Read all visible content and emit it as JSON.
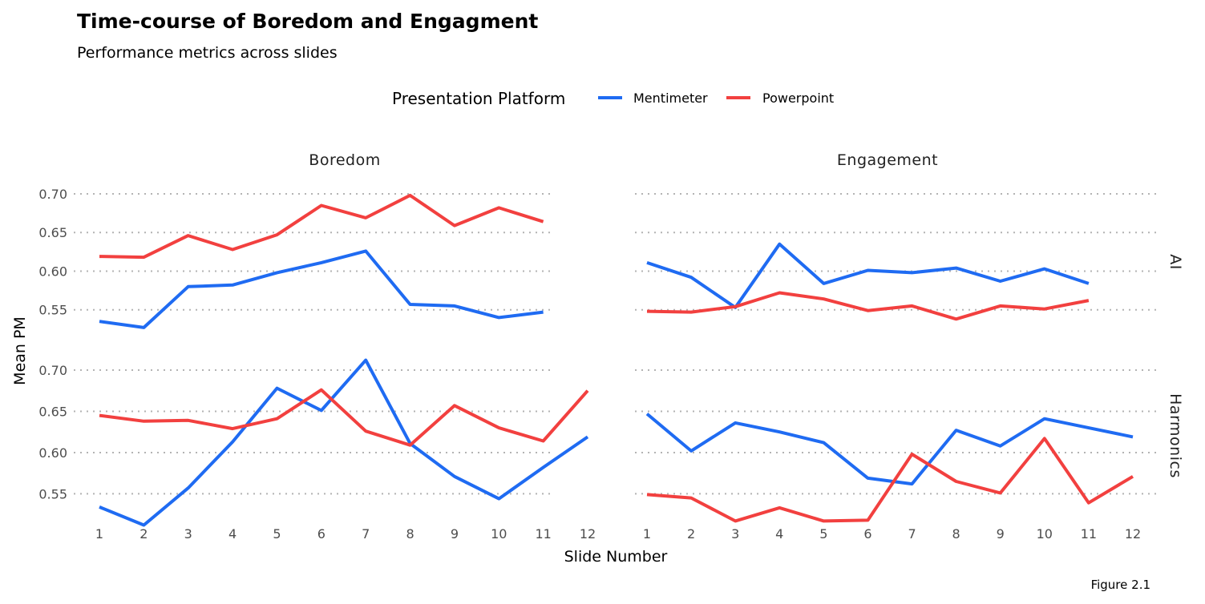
{
  "chart_data": {
    "type": "line",
    "title": "Time-course of Boredom and Engagment",
    "subtitle": "Performance metrics across slides",
    "caption": "Figure 2.1",
    "xlabel": "Slide Number",
    "ylabel": "Mean PM",
    "legend": {
      "title": "Presentation Platform",
      "position": "top",
      "entries": [
        {
          "name": "Mentimeter",
          "color": "#1f6bf2"
        },
        {
          "name": "Powerpoint",
          "color": "#f2403f"
        }
      ]
    },
    "facet_columns": [
      "Boredom",
      "Engagement"
    ],
    "facet_rows": [
      "AI",
      "Harmonics"
    ],
    "x_ticks": [
      "1",
      "2",
      "3",
      "4",
      "5",
      "6",
      "7",
      "8",
      "9",
      "10",
      "11",
      "12"
    ],
    "y_ticks": [
      "0.55",
      "0.60",
      "0.65",
      "0.70"
    ],
    "ylim_rows": {
      "AI": [
        0.515,
        0.712
      ],
      "Harmonics": [
        0.505,
        0.722
      ]
    },
    "panels": [
      {
        "column": "Boredom",
        "row": "AI",
        "series": [
          {
            "name": "Mentimeter",
            "x": [
              1,
              2,
              3,
              4,
              5,
              6,
              7,
              8,
              9,
              10,
              11
            ],
            "values": [
              0.535,
              0.527,
              0.58,
              0.582,
              0.598,
              0.611,
              0.626,
              0.557,
              0.555,
              0.54,
              0.547
            ]
          },
          {
            "name": "Powerpoint",
            "x": [
              1,
              2,
              3,
              4,
              5,
              6,
              7,
              8,
              9,
              10,
              11
            ],
            "values": [
              0.619,
              0.618,
              0.646,
              0.628,
              0.647,
              0.685,
              0.669,
              0.698,
              0.659,
              0.682,
              0.664
            ]
          }
        ]
      },
      {
        "column": "Engagement",
        "row": "AI",
        "series": [
          {
            "name": "Mentimeter",
            "x": [
              1,
              2,
              3,
              4,
              5,
              6,
              7,
              8,
              9,
              10,
              11
            ],
            "values": [
              0.611,
              0.592,
              0.553,
              0.635,
              0.584,
              0.601,
              0.598,
              0.604,
              0.587,
              0.603,
              0.584
            ]
          },
          {
            "name": "Powerpoint",
            "x": [
              1,
              2,
              3,
              4,
              5,
              6,
              7,
              8,
              9,
              10,
              11
            ],
            "values": [
              0.548,
              0.547,
              0.554,
              0.572,
              0.564,
              0.549,
              0.555,
              0.538,
              0.555,
              0.551,
              0.562
            ]
          }
        ]
      },
      {
        "column": "Boredom",
        "row": "Harmonics",
        "series": [
          {
            "name": "Mentimeter",
            "x": [
              1,
              2,
              3,
              4,
              5,
              6,
              7,
              8,
              9,
              10,
              11,
              12
            ],
            "values": [
              0.534,
              0.512,
              0.557,
              0.613,
              0.678,
              0.651,
              0.712,
              0.611,
              0.571,
              0.544,
              0.582,
              0.619
            ]
          },
          {
            "name": "Powerpoint",
            "x": [
              1,
              2,
              3,
              4,
              5,
              6,
              7,
              8,
              9,
              10,
              11,
              12
            ],
            "values": [
              0.645,
              0.638,
              0.639,
              0.629,
              0.641,
              0.676,
              0.626,
              0.609,
              0.657,
              0.63,
              0.614,
              0.675
            ]
          }
        ]
      },
      {
        "column": "Engagement",
        "row": "Harmonics",
        "series": [
          {
            "name": "Mentimeter",
            "x": [
              1,
              2,
              3,
              4,
              5,
              6,
              7,
              8,
              9,
              10,
              11,
              12
            ],
            "values": [
              0.647,
              0.602,
              0.636,
              0.625,
              0.612,
              0.569,
              0.562,
              0.627,
              0.608,
              0.641,
              0.63,
              0.619
            ]
          },
          {
            "name": "Powerpoint",
            "x": [
              1,
              2,
              3,
              4,
              5,
              6,
              7,
              8,
              9,
              10,
              11,
              12
            ],
            "values": [
              0.549,
              0.545,
              0.517,
              0.533,
              0.517,
              0.518,
              0.598,
              0.565,
              0.551,
              0.617,
              0.539,
              0.571
            ]
          }
        ]
      }
    ]
  }
}
